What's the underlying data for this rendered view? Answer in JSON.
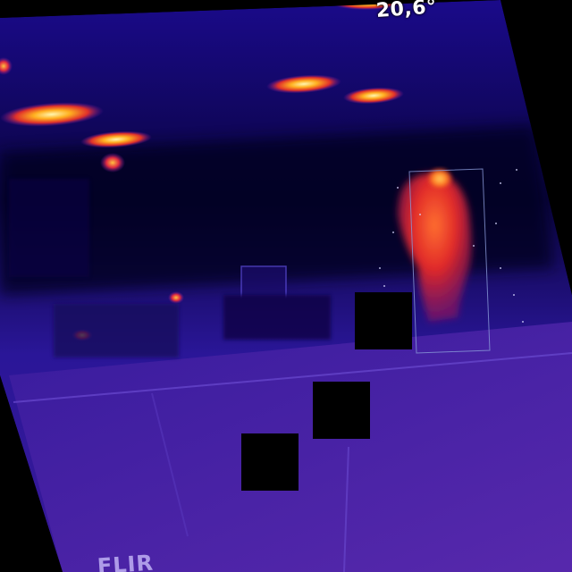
{
  "image": {
    "kind": "thermal-camera-frame",
    "palette": "iron",
    "temperature_readout": "20,6°",
    "brand_logo_text": "FLIR",
    "colors": {
      "background": "#000000",
      "cold": "#12002e",
      "cool": "#2a14a8",
      "mid": "#6a2ad0",
      "warm": "#e0302a",
      "hot": "#ffb020",
      "hottest": "#fff2a0"
    }
  },
  "detections": [
    {
      "label": "person",
      "visible_label": false
    }
  ],
  "redaction_boxes": 3
}
